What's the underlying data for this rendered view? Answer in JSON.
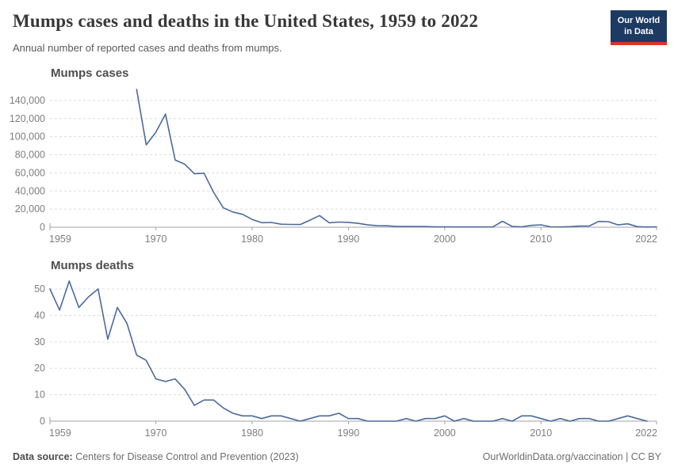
{
  "header": {
    "title": "Mumps cases and deaths in the United States, 1959 to 2022",
    "subtitle": "Annual number of reported cases and deaths from mumps.",
    "logo": {
      "line1": "Our World",
      "line2": "in Data",
      "bg_color": "#1d3a63",
      "bar_color": "#d7342c"
    }
  },
  "chart_data": [
    {
      "type": "line",
      "title": "Mumps cases",
      "xlabel": "",
      "ylabel": "",
      "xlim": [
        1959,
        2022
      ],
      "ylim": [
        0,
        160000
      ],
      "grid": true,
      "legend": "none",
      "line_color": "#4C6A9C",
      "grid_color": "#dcdcdc",
      "axis_color": "#a3a3a3",
      "tick_label_color": "#7e7e7e",
      "x_ticks": [
        1959,
        1970,
        1980,
        1990,
        2000,
        2010,
        2022
      ],
      "y_ticks": [
        0,
        20000,
        40000,
        60000,
        80000,
        100000,
        120000,
        140000
      ],
      "series": [
        {
          "name": "Mumps cases",
          "start_year": 1968,
          "values": [
            152209,
            90918,
            104953,
            124939,
            74215,
            69612,
            59128,
            59647,
            38492,
            21436,
            16817,
            14225,
            8576,
            4941,
            5270,
            3355,
            3021,
            2982,
            7790,
            12848,
            4866,
            5712,
            5292,
            4264,
            2572,
            1692,
            1537,
            906,
            751,
            683,
            666,
            387,
            338,
            266,
            270,
            231,
            258,
            314,
            6584,
            800,
            454,
            1991,
            2612,
            404,
            229,
            584,
            1223,
            1329,
            6369,
            6109,
            2515,
            3780,
            616,
            155,
            322
          ]
        }
      ]
    },
    {
      "type": "line",
      "title": "Mumps deaths",
      "xlabel": "",
      "ylabel": "",
      "xlim": [
        1959,
        2022
      ],
      "ylim": [
        0,
        54.5
      ],
      "grid": true,
      "legend": "none",
      "line_color": "#4C6A9C",
      "grid_color": "#dcdcdc",
      "axis_color": "#a3a3a3",
      "tick_label_color": "#7e7e7e",
      "x_ticks": [
        1959,
        1970,
        1980,
        1990,
        2000,
        2010,
        2022
      ],
      "y_ticks": [
        0,
        10,
        20,
        30,
        40,
        50
      ],
      "series": [
        {
          "name": "Mumps deaths",
          "start_year": 1959,
          "values": [
            50,
            42,
            53,
            43,
            47,
            50,
            31,
            43,
            37,
            25,
            23,
            16,
            15,
            16,
            12,
            6,
            8,
            8,
            5,
            3,
            2,
            2,
            1,
            2,
            2,
            1,
            0,
            1,
            2,
            2,
            3,
            1,
            1,
            0,
            0,
            0,
            0,
            1,
            0,
            1,
            1,
            2,
            0,
            1,
            0,
            0,
            0,
            1,
            0,
            2,
            2,
            1,
            0,
            1,
            0,
            1,
            1,
            0,
            0,
            1,
            2,
            1,
            0
          ]
        }
      ]
    }
  ],
  "footer": {
    "source_label": "Data source:",
    "source_value": " Centers for Disease Control and Prevention (2023)",
    "right_text": "OurWorldinData.org/vaccination | CC BY"
  }
}
